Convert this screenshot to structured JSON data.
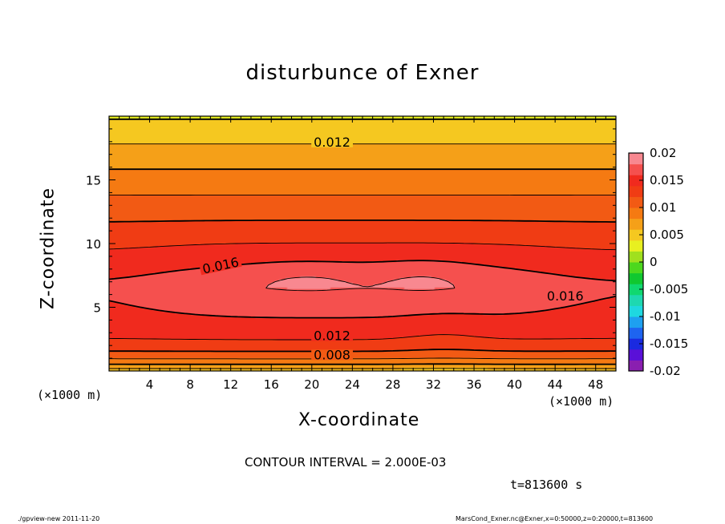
{
  "chart_data": {
    "type": "contour",
    "title": "disturbunce of Exner",
    "xlabel": "X-coordinate",
    "ylabel": "Z-coordinate",
    "x_unit": "(×1000 m)",
    "xlim": [
      0,
      50
    ],
    "ylim": [
      0,
      20
    ],
    "x_ticks": [
      4,
      8,
      12,
      16,
      20,
      24,
      28,
      32,
      36,
      40,
      44,
      48
    ],
    "y_ticks": [
      5,
      10,
      15
    ],
    "colorbar": {
      "ticks": [
        "0.02",
        "0.015",
        "0.01",
        "0.005",
        "0",
        "-0.005",
        "-0.01",
        "-0.015",
        "-0.02"
      ],
      "range": [
        -0.02,
        0.02
      ],
      "colors": [
        "#8a1fb0",
        "#5a10d8",
        "#1a2ae0",
        "#1e64f0",
        "#1ea0f0",
        "#1ed8e0",
        "#1ed8b0",
        "#10d870",
        "#10c830",
        "#4cd81e",
        "#a0e01e",
        "#e8f020",
        "#f5c820",
        "#f5a018",
        "#f57a12",
        "#f25a14",
        "#f03c14",
        "#f02a1e",
        "#f5504e",
        "#f88890"
      ]
    },
    "contour_labels": [
      {
        "text": "0.012",
        "x": 22,
        "z": 18
      },
      {
        "text": "0.016",
        "x": 11,
        "z": 8.3
      },
      {
        "text": "0.016",
        "x": 45,
        "z": 5.9
      },
      {
        "text": "0.012",
        "x": 22,
        "z": 2.8
      },
      {
        "text": "0.008",
        "x": 22,
        "z": 1.3
      }
    ],
    "contour_interval": "CONTOUR INTERVAL = 2.000E-03",
    "time": "t=813600 s"
  },
  "footer": {
    "left": "./gpview-new   2011-11-20",
    "right": "MarsCond_Exner.nc@Exner,x=0:50000,z=0:20000,t=813600"
  }
}
